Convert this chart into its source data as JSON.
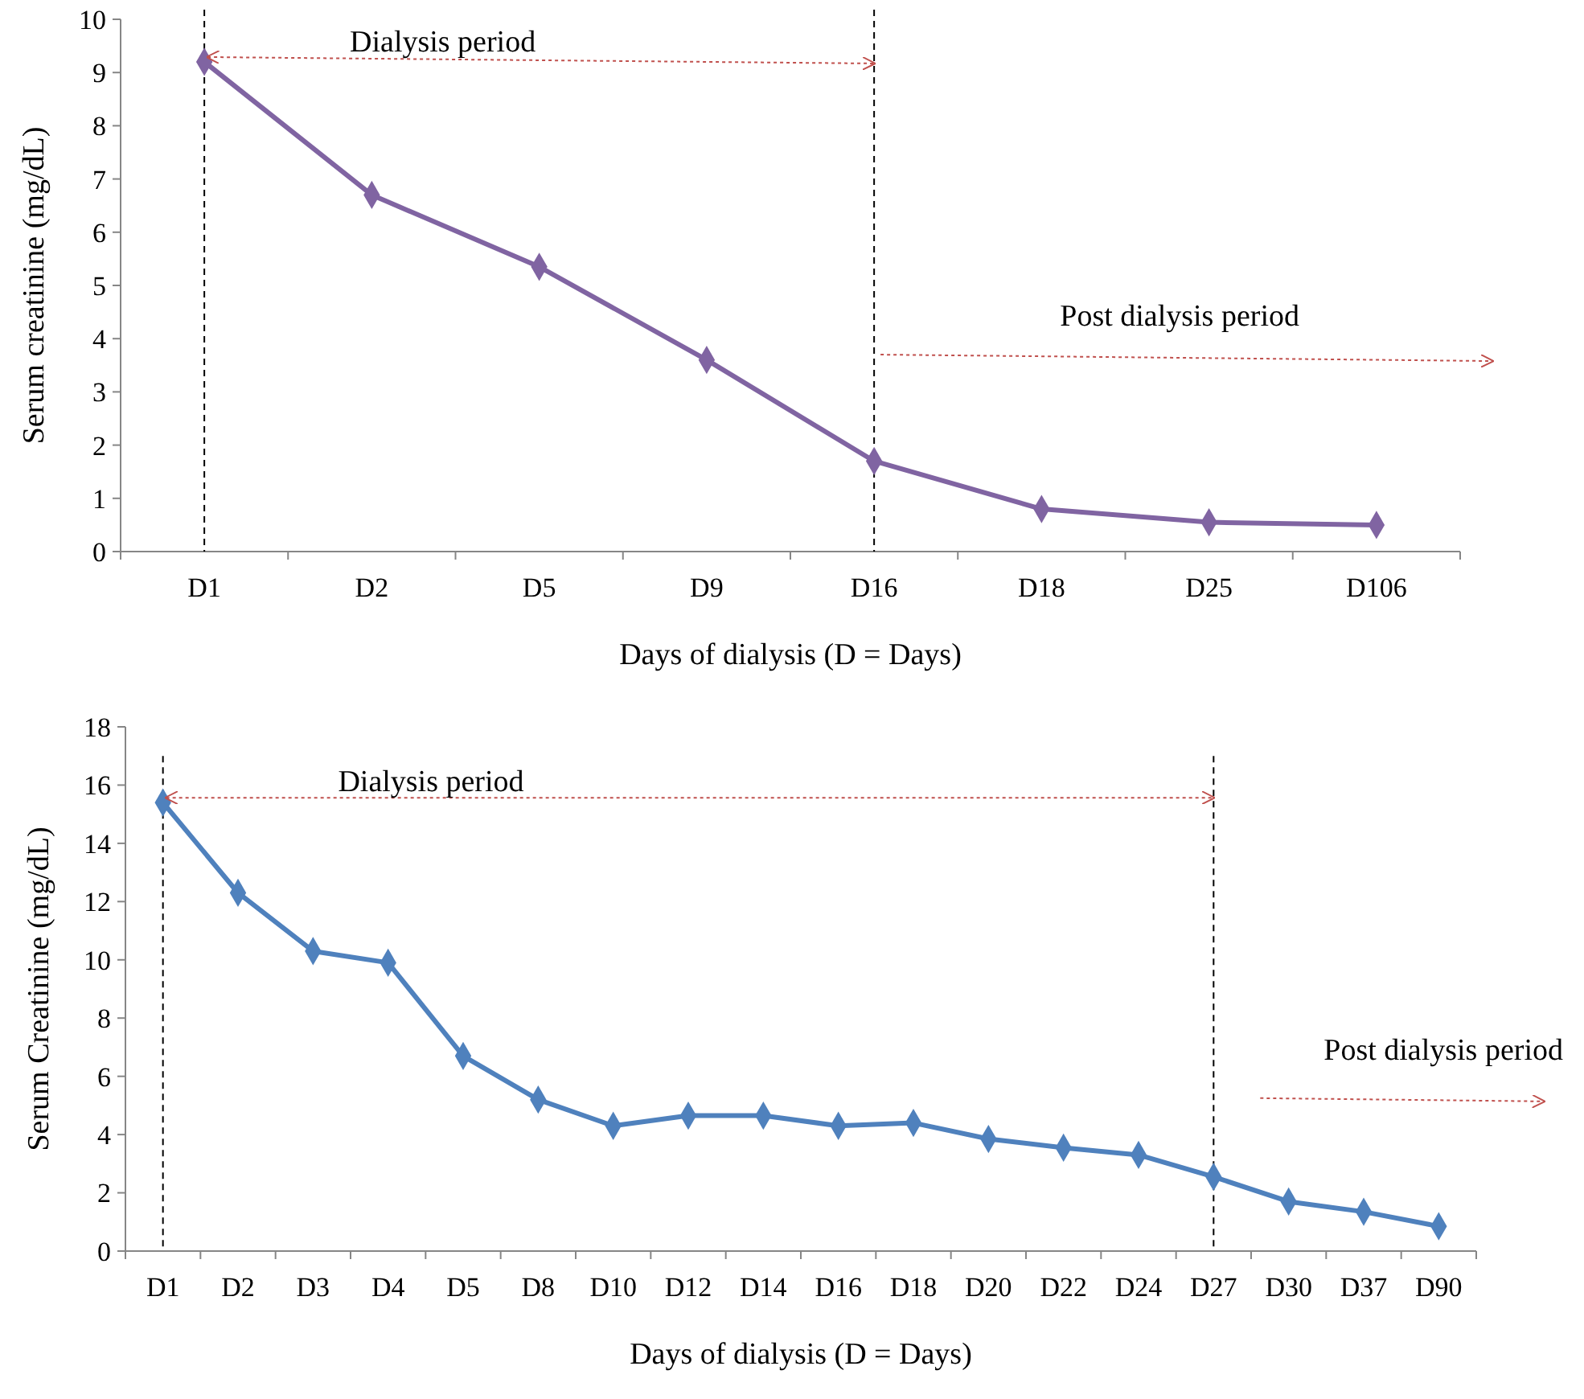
{
  "chart_data": [
    {
      "type": "line",
      "xlabel": "Days of dialysis  (D = Days)",
      "ylabel": "Serum creatinine  (mg/dL)",
      "categories": [
        "D1",
        "D2",
        "D5",
        "D9",
        "D16",
        "D18",
        "D25",
        "D106"
      ],
      "series": [
        {
          "color": "#8064a2",
          "values": [
            9.2,
            6.7,
            5.35,
            3.6,
            1.7,
            0.8,
            0.55,
            0.5
          ]
        }
      ],
      "ylim": [
        0,
        10
      ],
      "yticks": [
        0,
        1,
        2,
        3,
        4,
        5,
        6,
        7,
        8,
        9,
        10
      ],
      "grid": false,
      "marker": "diamond",
      "line_style": "solid",
      "ref_lines": [
        {
          "axis": "x",
          "value": "D1",
          "color": "#000000",
          "line_style": "dashed"
        },
        {
          "axis": "x",
          "value": "D16",
          "color": "#000000",
          "line_style": "dashed"
        }
      ],
      "annotations": [
        "Dialysis  period",
        "Post dialysis  period"
      ]
    },
    {
      "type": "line",
      "xlabel": "Days of dialysis  (D = Days)",
      "ylabel": "Serum Creatinine  (mg/dL)",
      "categories": [
        "D1",
        "D2",
        "D3",
        "D4",
        "D5",
        "D8",
        "D10",
        "D12",
        "D14",
        "D16",
        "D18",
        "D20",
        "D22",
        "D24",
        "D27",
        "D30",
        "D37",
        "D90"
      ],
      "series": [
        {
          "color": "#4f81bd",
          "values": [
            15.4,
            12.3,
            10.3,
            9.9,
            6.7,
            5.2,
            4.3,
            4.65,
            4.65,
            4.3,
            4.4,
            3.85,
            3.55,
            3.3,
            2.55,
            1.7,
            1.35,
            0.85
          ]
        }
      ],
      "ylim": [
        0,
        18
      ],
      "yticks": [
        0,
        2,
        4,
        6,
        8,
        10,
        12,
        14,
        16,
        18
      ],
      "grid": false,
      "marker": "diamond",
      "line_style": "solid",
      "ref_lines": [
        {
          "axis": "x",
          "value": "D1",
          "color": "#000000",
          "line_style": "dashed"
        },
        {
          "axis": "x",
          "value": "D27",
          "color": "#000000",
          "line_style": "dashed"
        }
      ],
      "annotations": [
        "Dialysis period",
        "Post dialysis period"
      ]
    }
  ]
}
